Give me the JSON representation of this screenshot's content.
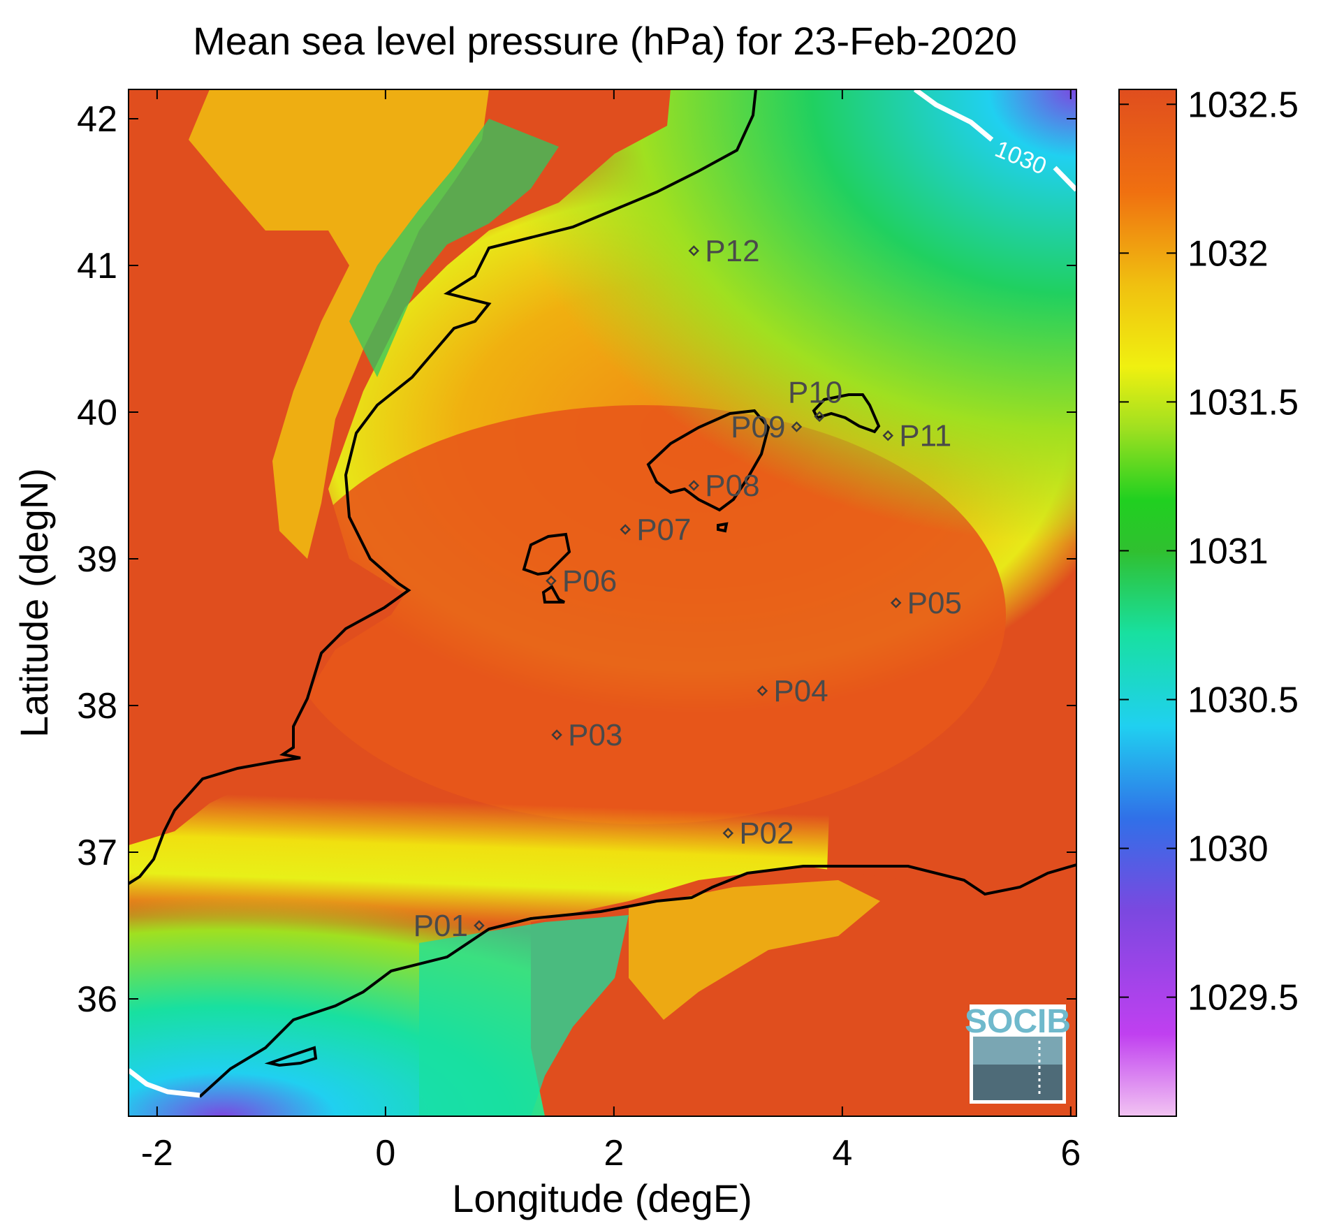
{
  "title": "Mean sea level pressure (hPa) for 23-Feb-2020",
  "xlabel": "Longitude (degE)",
  "ylabel": "Latitude (degN)",
  "x_ticks": [
    "-2",
    "0",
    "2",
    "4",
    "6"
  ],
  "y_ticks": [
    "36",
    "37",
    "38",
    "39",
    "40",
    "41",
    "42"
  ],
  "colorbar": {
    "ticks": [
      "1029.5",
      "1030",
      "1030.5",
      "1031",
      "1031.5",
      "1032",
      "1032.5"
    ],
    "range": [
      1029.1,
      1032.55
    ],
    "colors": [
      "#f2c4f2",
      "#c040f0",
      "#7b48e0",
      "#3070e8",
      "#20d0f0",
      "#18e0a0",
      "#30c030",
      "#20d020",
      "#a0e020",
      "#f0f010",
      "#f0c010",
      "#f07010",
      "#e04e1e"
    ]
  },
  "contour": {
    "label": "1030",
    "color": "#ffffff"
  },
  "stations": [
    {
      "id": "P01",
      "lon": 0.82,
      "lat": 36.5,
      "anchor": "left"
    },
    {
      "id": "P02",
      "lon": 3.0,
      "lat": 37.13,
      "anchor": "right"
    },
    {
      "id": "P03",
      "lon": 1.5,
      "lat": 37.8,
      "anchor": "right"
    },
    {
      "id": "P04",
      "lon": 3.3,
      "lat": 38.1,
      "anchor": "right"
    },
    {
      "id": "P05",
      "lon": 4.47,
      "lat": 38.7,
      "anchor": "right"
    },
    {
      "id": "P06",
      "lon": 1.45,
      "lat": 38.85,
      "anchor": "right"
    },
    {
      "id": "P07",
      "lon": 2.1,
      "lat": 39.2,
      "anchor": "right"
    },
    {
      "id": "P08",
      "lon": 2.7,
      "lat": 39.5,
      "anchor": "right"
    },
    {
      "id": "P09",
      "lon": 3.6,
      "lat": 39.9,
      "anchor": "left"
    },
    {
      "id": "P10",
      "lon": 3.8,
      "lat": 39.97,
      "anchor": "above"
    },
    {
      "id": "P11",
      "lon": 4.4,
      "lat": 39.84,
      "anchor": "right"
    },
    {
      "id": "P12",
      "lon": 2.7,
      "lat": 41.1,
      "anchor": "right"
    }
  ],
  "logo": {
    "text": "SOCIB"
  }
}
